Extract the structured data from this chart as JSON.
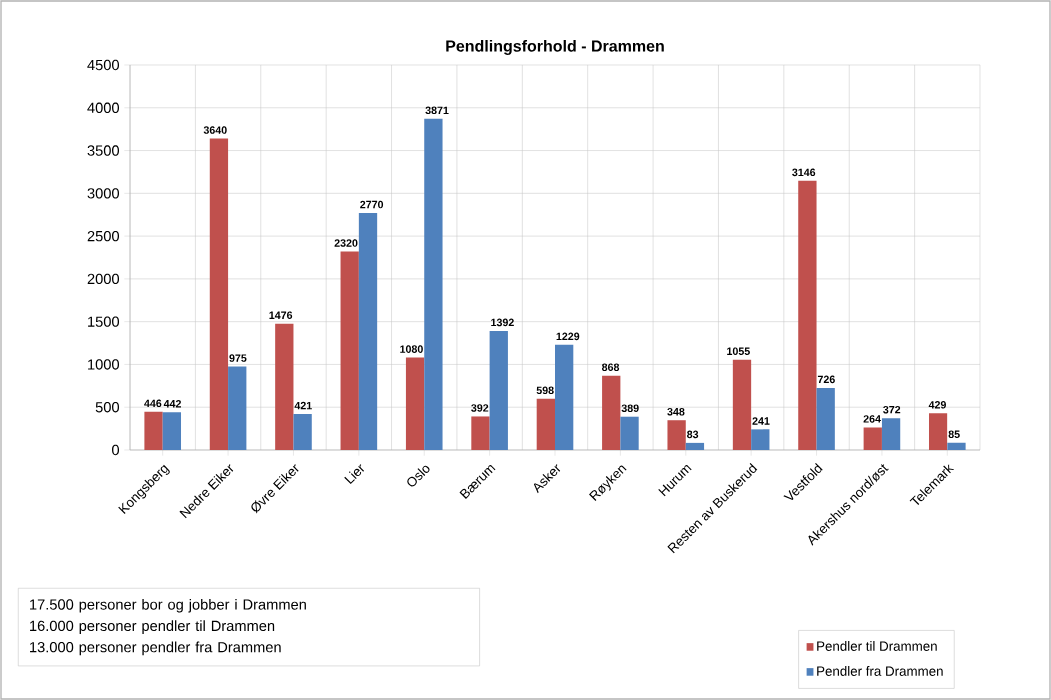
{
  "chart_data": {
    "type": "bar",
    "title": "Pendlingsforhold - Drammen",
    "categories": [
      "Kongsberg",
      "Nedre Eiker",
      "Øvre Eiker",
      "Lier",
      "Oslo",
      "Bærum",
      "Asker",
      "Røyken",
      "Hurum",
      "Resten av Buskerud",
      "Vestfold",
      "Akershus nord/øst",
      "Telemark"
    ],
    "series": [
      {
        "name": "Pendler til Drammen",
        "color": "#c0504d",
        "values": [
          446,
          3640,
          1476,
          2320,
          1080,
          392,
          598,
          868,
          348,
          1055,
          3146,
          264,
          429
        ]
      },
      {
        "name": "Pendler fra Drammen",
        "color": "#4f81bd",
        "values": [
          442,
          975,
          421,
          2770,
          3871,
          1392,
          1229,
          389,
          83,
          241,
          726,
          372,
          85
        ]
      }
    ],
    "ylim": [
      0,
      4500
    ],
    "yticks": [
      0,
      500,
      1000,
      1500,
      2000,
      2500,
      3000,
      3500,
      4000,
      4500
    ],
    "grid": true,
    "legend": "bottom right",
    "data_labels": true,
    "annotations": [
      "17.500 personer bor og jobber i Drammen",
      "16.000 personer pendler til Drammen",
      "13.000 personer pendler fra Drammen"
    ]
  }
}
